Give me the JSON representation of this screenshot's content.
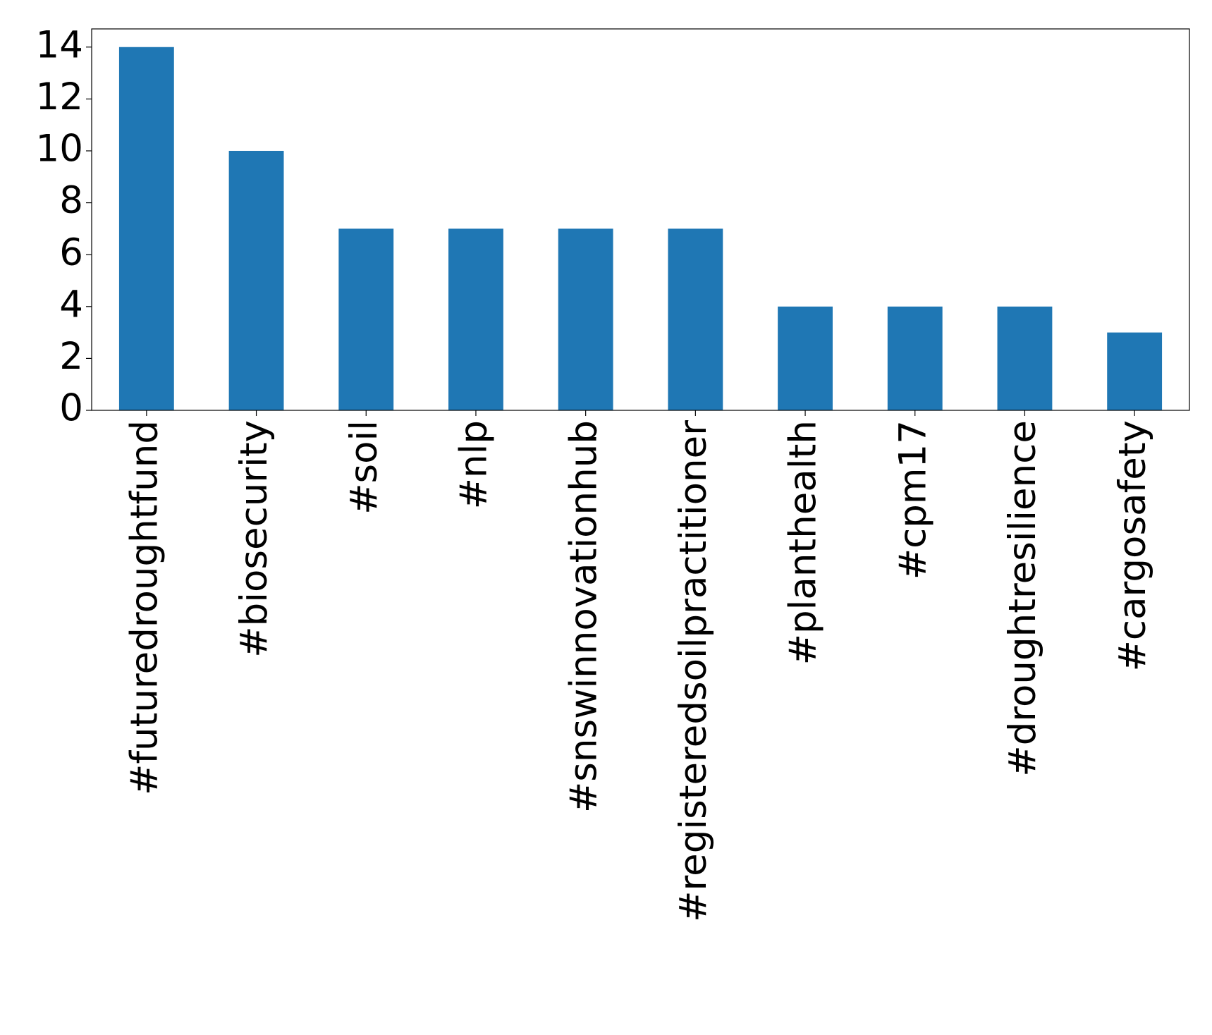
{
  "chart_data": {
    "type": "bar",
    "categories": [
      "#futuredroughtfund",
      "#biosecurity",
      "#soil",
      "#nlp",
      "#snswinnovationhub",
      "#registeredsoilpractitioner",
      "#planthealth",
      "#cpm17",
      "#droughtresilience",
      "#cargosafety"
    ],
    "values": [
      14,
      10,
      7,
      7,
      7,
      7,
      4,
      4,
      4,
      3
    ],
    "color": "#1f77b4",
    "ylim": [
      0,
      14.7
    ],
    "yticks": [
      0,
      2,
      4,
      6,
      8,
      10,
      12,
      14
    ],
    "grid": false
  }
}
